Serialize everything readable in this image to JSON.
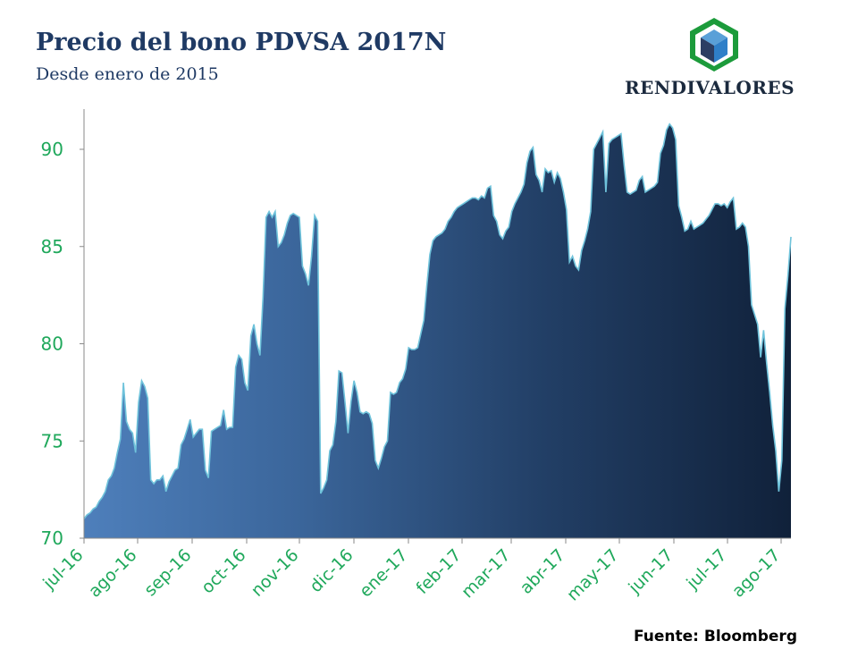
{
  "header": {
    "title": "Precio del bono PDVSA 2017N",
    "subtitle": "Desde enero de 2015",
    "brand": "RENDIVALORES",
    "logo_icon": "cube-logo-icon"
  },
  "footer": {
    "source": "Fuente: Bloomberg"
  },
  "colors": {
    "accent_green": "#1fa85b",
    "area_light": "#4e7fbb",
    "area_dark": "#10213a",
    "line": "#6fc3db",
    "title": "#1f3a64"
  },
  "chart_data": {
    "type": "area",
    "title": "Precio del bono PDVSA 2017N",
    "subtitle": "Desde enero de 2015",
    "xlabel": "",
    "ylabel": "",
    "ylim": [
      70,
      92
    ],
    "yticks": [
      70,
      75,
      80,
      85,
      90
    ],
    "xtick_labels": [
      "jul-16",
      "ago-16",
      "sep-16",
      "oct-16",
      "nov-16",
      "dic-16",
      "ene-17",
      "feb-17",
      "mar-17",
      "abr-17",
      "may-17",
      "jun-17",
      "jul-17",
      "ago-17"
    ],
    "grid": false,
    "legend": "none",
    "series": [
      {
        "values": [
          71.0,
          71.2,
          71.3,
          71.5,
          71.6,
          71.9,
          72.1,
          72.4,
          73.0,
          73.2,
          73.6,
          74.4,
          75.1,
          78.0,
          76.0,
          75.6,
          75.4,
          74.4,
          77.0,
          78.1,
          77.8,
          77.2,
          73.0,
          72.8,
          73.0,
          73.0,
          73.2,
          72.4,
          72.9,
          73.2,
          73.5,
          73.6,
          74.8,
          75.1,
          75.6,
          76.1,
          75.2,
          75.4,
          75.6,
          75.6,
          73.5,
          73.1,
          75.5,
          75.6,
          75.7,
          75.8,
          76.6,
          75.6,
          75.7,
          75.7,
          78.8,
          79.4,
          79.2,
          78.0,
          77.6,
          80.4,
          81.0,
          80.0,
          79.4,
          82.4,
          86.5,
          86.8,
          86.5,
          86.8,
          85.0,
          85.2,
          85.6,
          86.2,
          86.6,
          86.7,
          86.6,
          86.5,
          84.0,
          83.6,
          83.0,
          84.5,
          86.6,
          86.3,
          72.3,
          72.6,
          73.0,
          74.5,
          74.8,
          76.0,
          78.6,
          78.5,
          77.0,
          75.4,
          77.0,
          78.1,
          77.5,
          76.5,
          76.4,
          76.5,
          76.4,
          75.9,
          74.0,
          73.6,
          74.1,
          74.7,
          75.0,
          77.5,
          77.4,
          77.5,
          78.0,
          78.2,
          78.7,
          79.8,
          79.7,
          79.7,
          79.8,
          80.5,
          81.2,
          83.0,
          84.6,
          85.3,
          85.5,
          85.6,
          85.7,
          85.9,
          86.3,
          86.5,
          86.8,
          87.0,
          87.1,
          87.2,
          87.3,
          87.4,
          87.5,
          87.5,
          87.4,
          87.6,
          87.5,
          88.0,
          88.1,
          86.6,
          86.3,
          85.6,
          85.4,
          85.8,
          86.0,
          86.8,
          87.2,
          87.5,
          87.8,
          88.2,
          89.3,
          89.9,
          90.1,
          88.7,
          88.4,
          87.8,
          89.0,
          88.8,
          88.9,
          88.3,
          88.8,
          88.5,
          87.8,
          86.9,
          84.2,
          84.5,
          84.0,
          83.8,
          84.8,
          85.3,
          85.9,
          86.8,
          90.0,
          90.3,
          90.6,
          90.9,
          87.8,
          90.3,
          90.5,
          90.6,
          90.7,
          90.8,
          89.2,
          87.8,
          87.7,
          87.8,
          87.9,
          88.4,
          88.6,
          87.8,
          87.9,
          88.0,
          88.1,
          88.3,
          89.8,
          90.2,
          91.0,
          91.3,
          91.1,
          90.5,
          87.1,
          86.5,
          85.8,
          85.9,
          86.3,
          85.9,
          86.0,
          86.1,
          86.2,
          86.4,
          86.6,
          86.9,
          87.2,
          87.2,
          87.1,
          87.2,
          87.0,
          87.3,
          87.5,
          85.9,
          86.0,
          86.2,
          86.0,
          85.0,
          82.0,
          81.5,
          81.0,
          79.3,
          80.7,
          79.0,
          77.5,
          75.8,
          74.5,
          72.4,
          74.0,
          81.8,
          83.5,
          85.5
        ]
      }
    ]
  }
}
